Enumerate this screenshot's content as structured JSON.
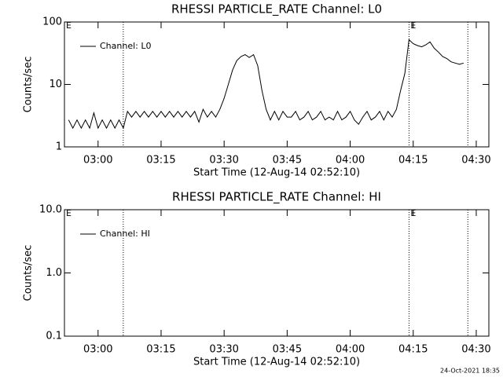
{
  "chart_data": [
    {
      "type": "line",
      "title": "RHESSI PARTICLE_RATE Channel: L0",
      "ylabel": "Counts/sec",
      "xlabel": "Start Time (12-Aug-14 02:52:10)",
      "log_y": true,
      "ylim": [
        1,
        100
      ],
      "yticks": [
        1,
        10,
        100
      ],
      "xlim": [
        "02:52",
        "04:33"
      ],
      "xticks": [
        "03:00",
        "03:15",
        "03:30",
        "03:45",
        "04:00",
        "04:15",
        "04:30"
      ],
      "vlines": [
        "03:06",
        "04:14",
        "04:28"
      ],
      "annotations": [
        {
          "x": "02:52",
          "label": "E"
        },
        {
          "x": "04:14",
          "label": "E"
        }
      ],
      "legend": "upper left",
      "series": [
        {
          "name": "Channel: L0",
          "color": "#000000",
          "x": [
            "02:53",
            "02:54",
            "02:55",
            "02:56",
            "02:57",
            "02:58",
            "02:59",
            "03:00",
            "03:01",
            "03:02",
            "03:03",
            "03:04",
            "03:05",
            "03:06",
            "03:07",
            "03:08",
            "03:09",
            "03:10",
            "03:11",
            "03:12",
            "03:13",
            "03:14",
            "03:15",
            "03:16",
            "03:17",
            "03:18",
            "03:19",
            "03:20",
            "03:21",
            "03:22",
            "03:23",
            "03:24",
            "03:25",
            "03:26",
            "03:27",
            "03:28",
            "03:29",
            "03:30",
            "03:31",
            "03:32",
            "03:33",
            "03:34",
            "03:35",
            "03:36",
            "03:37",
            "03:38",
            "03:39",
            "03:40",
            "03:41",
            "03:42",
            "03:43",
            "03:44",
            "03:45",
            "03:46",
            "03:47",
            "03:48",
            "03:49",
            "03:50",
            "03:51",
            "03:52",
            "03:53",
            "03:54",
            "03:55",
            "03:56",
            "03:57",
            "03:58",
            "03:59",
            "04:00",
            "04:01",
            "04:02",
            "04:03",
            "04:04",
            "04:05",
            "04:06",
            "04:07",
            "04:08",
            "04:09",
            "04:10",
            "04:11",
            "04:12",
            "04:13",
            "04:14",
            "04:15",
            "04:16",
            "04:17",
            "04:18",
            "04:19",
            "04:20",
            "04:21",
            "04:22",
            "04:23",
            "04:24",
            "04:25",
            "04:26",
            "04:27"
          ],
          "values": [
            2.7,
            2,
            2.7,
            2,
            2.7,
            2,
            3.5,
            2,
            2.7,
            2,
            2.7,
            2,
            2.7,
            2,
            3.7,
            3,
            3.7,
            3,
            3.7,
            3,
            3.7,
            3,
            3.7,
            3,
            3.7,
            3,
            3.7,
            3,
            3.7,
            3,
            3.7,
            2.5,
            4,
            3,
            3.7,
            3,
            4,
            6,
            10,
            17,
            24,
            28,
            30,
            27,
            30,
            20,
            8,
            4,
            2.7,
            3.7,
            2.7,
            3.7,
            3,
            3,
            3.7,
            2.7,
            3,
            3.7,
            2.7,
            3,
            3.7,
            2.7,
            3,
            2.7,
            3.7,
            2.7,
            3,
            3.7,
            2.7,
            2.3,
            3,
            3.7,
            2.7,
            3,
            3.7,
            2.7,
            3.7,
            3,
            4,
            8,
            15,
            52,
            45,
            42,
            40,
            43,
            48,
            38,
            33,
            28,
            26,
            23,
            22,
            21,
            22
          ]
        }
      ]
    },
    {
      "type": "line",
      "title": "RHESSI PARTICLE_RATE Channel: HI",
      "ylabel": "Counts/sec",
      "xlabel": "Start Time (12-Aug-14 02:52:10)",
      "log_y": true,
      "ylim": [
        0.1,
        10
      ],
      "yticks": [
        0.1,
        {
          "value": 1,
          "label": "1.0"
        },
        {
          "value": 10,
          "label": "10.0"
        }
      ],
      "xlim": [
        "02:52",
        "04:33"
      ],
      "xticks": [
        "03:00",
        "03:15",
        "03:30",
        "03:45",
        "04:00",
        "04:15",
        "04:30"
      ],
      "vlines": [
        "03:06",
        "04:14",
        "04:28"
      ],
      "annotations": [
        {
          "x": "02:52",
          "label": "E"
        },
        {
          "x": "04:14",
          "label": "E"
        }
      ],
      "legend": "upper left",
      "series": [
        {
          "name": "Channel: HI",
          "color": "#000000",
          "x": [],
          "values": []
        }
      ]
    }
  ],
  "footer": "24-Oct-2021 18:35"
}
